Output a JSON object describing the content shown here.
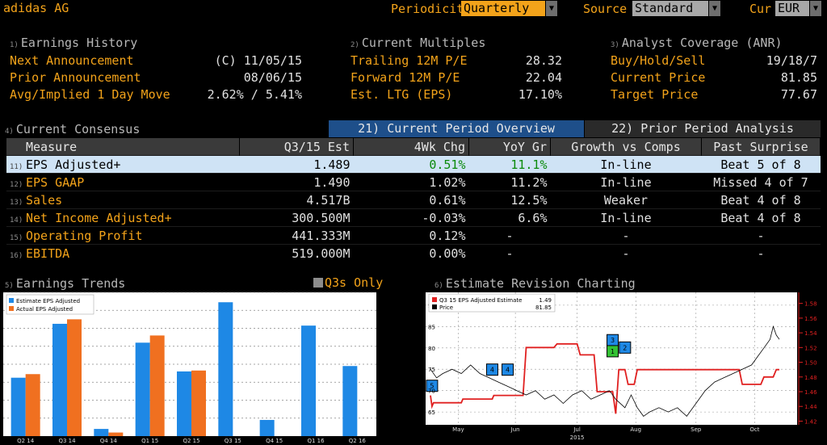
{
  "header": {
    "company": "adidas AG",
    "periodicity_label": "Periodicity",
    "periodicity_value": "Quarterly",
    "source_label": "Source",
    "source_value": "Standard",
    "cur_label": "Cur",
    "cur_value": "EUR"
  },
  "earnings_history": {
    "num": "1)",
    "title": "Earnings History",
    "rows": [
      {
        "label": "Next Announcement",
        "value": "(C)  11/05/15"
      },
      {
        "label": "Prior Announcement",
        "value": "08/06/15"
      },
      {
        "label": "Avg/Implied 1 Day Move",
        "value": "2.62% / 5.41%"
      }
    ]
  },
  "current_multiples": {
    "num": "2)",
    "title": "Current Multiples",
    "rows": [
      {
        "label": "Trailing 12M P/E",
        "value": "28.32"
      },
      {
        "label": "Forward 12M P/E",
        "value": "22.04"
      },
      {
        "label": "Est. LTG (EPS)",
        "value": "17.10%"
      }
    ]
  },
  "analyst_coverage": {
    "num": "3)",
    "title": "Analyst Coverage (ANR)",
    "rows": [
      {
        "label": "Buy/Hold/Sell",
        "value": "19/18/7"
      },
      {
        "label": "Current Price",
        "value": "81.85"
      },
      {
        "label": "Target Price",
        "value": "77.67"
      }
    ]
  },
  "consensus": {
    "num": "4)",
    "title": "Current Consensus",
    "tab_current": "21) Current Period Overview (Q3/15)",
    "tab_prior": "22) Prior Period Analysis (Q2/15)",
    "columns": [
      "Measure",
      "Q3/15 Est",
      "4Wk Chg",
      "YoY Gr",
      "Growth vs Comps",
      "Past Surprise"
    ],
    "rows": [
      {
        "n": "11)",
        "measure": "EPS Adjusted+",
        "est": "1.489",
        "chg": "0.51%",
        "yoy": "11.1%",
        "comps": "In-line",
        "surprise": "Beat 5 of 8"
      },
      {
        "n": "12)",
        "measure": "EPS GAAP",
        "est": "1.490",
        "chg": "1.02%",
        "yoy": "11.2%",
        "comps": "In-line",
        "surprise": "Missed 4 of 7"
      },
      {
        "n": "13)",
        "measure": "Sales",
        "est": "4.517B",
        "chg": "0.61%",
        "yoy": "12.5%",
        "comps": "Weaker",
        "surprise": "Beat 4 of 8"
      },
      {
        "n": "14)",
        "measure": "Net Income Adjusted+",
        "est": "300.500M",
        "chg": "-0.03%",
        "yoy": "6.6%",
        "comps": "In-line",
        "surprise": "Beat 4 of 8"
      },
      {
        "n": "15)",
        "measure": "Operating Profit",
        "est": "441.333M",
        "chg": "0.12%",
        "yoy": "-",
        "comps": "-",
        "surprise": "-"
      },
      {
        "n": "16)",
        "measure": "EBITDA",
        "est": "519.000M",
        "chg": "0.00%",
        "yoy": "-",
        "comps": "-",
        "surprise": "-"
      }
    ]
  },
  "earnings_trends": {
    "num": "5)",
    "title": "Earnings Trends",
    "toggle": "Q3s Only"
  },
  "estimate_revision": {
    "num": "6)",
    "title": "Estimate Revision Charting"
  },
  "colors": {
    "amber": "#f3a31a",
    "blue": "#1e88e5",
    "orange": "#f07020",
    "red": "#e02020",
    "green": "#33c233"
  },
  "chart_data": [
    {
      "type": "bar",
      "categories": [
        "Q2 14",
        "Q3 14",
        "Q4 14",
        "Q1 15",
        "Q2 15",
        "Q3 15",
        "Q4 15",
        "Q1 16",
        "Q2 16"
      ],
      "series": [
        {
          "name": "Estimate EPS Adjusted",
          "values": [
            0.65,
            1.25,
            0.08,
            1.04,
            0.72,
            1.49,
            0.18,
            1.23,
            0.78
          ]
        },
        {
          "name": "Actual EPS Adjusted",
          "values": [
            0.69,
            1.3,
            0.04,
            1.12,
            0.73,
            null,
            null,
            null,
            null
          ]
        }
      ],
      "y_ticks": [
        "0.20",
        "0.40",
        "0.60",
        "0.80",
        "1.00",
        "1.20",
        "1.40",
        "1.60"
      ],
      "ylim": [
        0,
        1.6
      ]
    },
    {
      "type": "line",
      "x_ticks": [
        "May",
        "Jun",
        "Jul",
        "Aug",
        "Sep",
        "Oct"
      ],
      "x_year": "2015",
      "left_ticks": [
        "65",
        "70",
        "75",
        "80",
        "85",
        "90"
      ],
      "right_ticks": [
        "1.42",
        "1.44",
        "1.46",
        "1.48",
        "1.50",
        "1.52",
        "1.54",
        "1.56",
        "1.58"
      ],
      "left_lim": [
        62,
        93
      ],
      "right_lim": [
        1.415,
        1.595
      ],
      "legend": [
        {
          "name": "Q3 15 EPS Adjusted Estimate",
          "value": "1.49"
        },
        {
          "name": "Price",
          "value": "81.85"
        }
      ],
      "markers": [
        "5",
        "4",
        "4",
        "3",
        "2",
        "1"
      ],
      "series": [
        {
          "name": "Q3 15 EPS Adjusted Estimate",
          "axis": "right",
          "points": [
            [
              0,
              1.455
            ],
            [
              1,
              1.44
            ],
            [
              2,
              1.445
            ],
            [
              20,
              1.445
            ],
            [
              21,
              1.45
            ],
            [
              40,
              1.45
            ],
            [
              41,
              1.455
            ],
            [
              60,
              1.455
            ],
            [
              62,
              1.52
            ],
            [
              80,
              1.52
            ],
            [
              82,
              1.525
            ],
            [
              95,
              1.525
            ],
            [
              97,
              1.51
            ],
            [
              106,
              1.51
            ],
            [
              108,
              1.46
            ],
            [
              118,
              1.46
            ],
            [
              120,
              1.43
            ],
            [
              122,
              1.49
            ],
            [
              126,
              1.49
            ],
            [
              128,
              1.47
            ],
            [
              132,
              1.47
            ],
            [
              134,
              1.49
            ],
            [
              200,
              1.49
            ],
            [
              202,
              1.47
            ],
            [
              214,
              1.47
            ],
            [
              216,
              1.48
            ],
            [
              222,
              1.48
            ],
            [
              224,
              1.49
            ],
            [
              226,
              1.49
            ]
          ]
        },
        {
          "name": "Price",
          "axis": "left",
          "points": [
            [
              0,
              75
            ],
            [
              4,
              73
            ],
            [
              8,
              74
            ],
            [
              14,
              75
            ],
            [
              20,
              74
            ],
            [
              26,
              76
            ],
            [
              32,
              74
            ],
            [
              38,
              73
            ],
            [
              44,
              72
            ],
            [
              50,
              71
            ],
            [
              56,
              70
            ],
            [
              62,
              69
            ],
            [
              68,
              70
            ],
            [
              74,
              68
            ],
            [
              80,
              69
            ],
            [
              86,
              67
            ],
            [
              92,
              69
            ],
            [
              98,
              70
            ],
            [
              104,
              68
            ],
            [
              110,
              69
            ],
            [
              116,
              70
            ],
            [
              120,
              68
            ],
            [
              126,
              66
            ],
            [
              130,
              69
            ],
            [
              134,
              66
            ],
            [
              138,
              64
            ],
            [
              142,
              65
            ],
            [
              148,
              66
            ],
            [
              154,
              65
            ],
            [
              160,
              66
            ],
            [
              166,
              64
            ],
            [
              172,
              67
            ],
            [
              178,
              70
            ],
            [
              184,
              72
            ],
            [
              190,
              73
            ],
            [
              196,
              74
            ],
            [
              202,
              75
            ],
            [
              208,
              76
            ],
            [
              212,
              78
            ],
            [
              216,
              80
            ],
            [
              220,
              82
            ],
            [
              222,
              85
            ],
            [
              224,
              83
            ],
            [
              226,
              82
            ]
          ]
        }
      ]
    }
  ]
}
